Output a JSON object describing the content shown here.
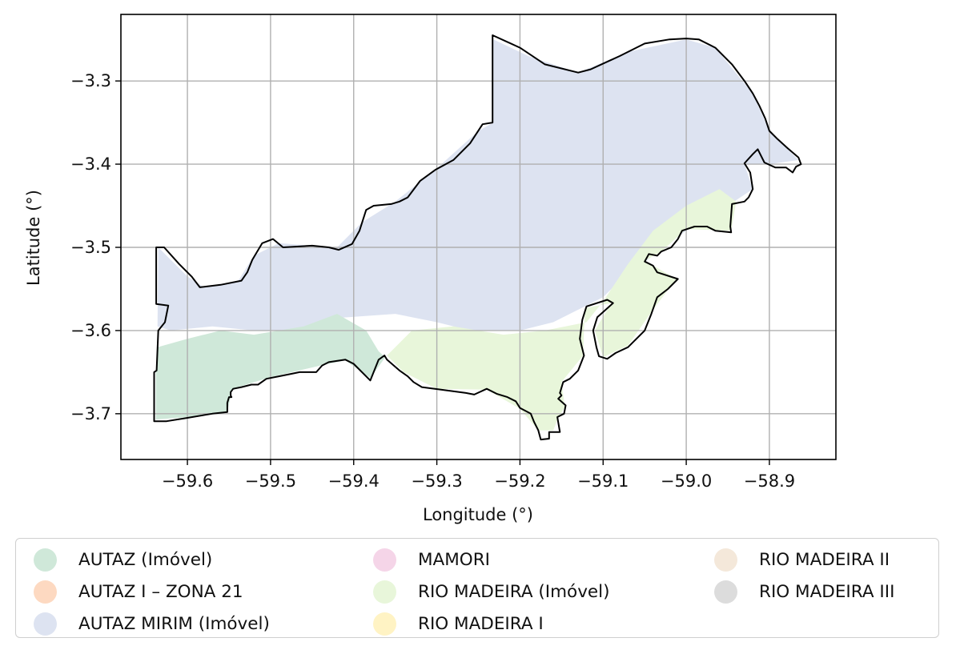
{
  "map": {
    "xlabel": "Longitude (°)",
    "ylabel": "Latitude (°)",
    "xlim": [
      -59.68,
      -58.82
    ],
    "ylim": [
      -3.755,
      -3.22
    ],
    "x_ticks": [
      -59.6,
      -59.5,
      -59.4,
      -59.3,
      -59.2,
      -59.1,
      -59.0,
      -58.9
    ],
    "x_tick_labels": [
      "−59.6",
      "−59.5",
      "−59.4",
      "−59.3",
      "−59.2",
      "−59.1",
      "−59.0",
      "−58.9"
    ],
    "y_ticks": [
      -3.3,
      -3.4,
      -3.5,
      -3.6,
      -3.7
    ],
    "y_tick_labels": [
      "−3.3",
      "−3.4",
      "−3.5",
      "−3.6",
      "−3.7"
    ],
    "grid": true,
    "boundary": [
      [
        -59.64,
        -3.709
      ],
      [
        -59.64,
        -3.65
      ],
      [
        -59.637,
        -3.648
      ],
      [
        -59.635,
        -3.6
      ],
      [
        -59.627,
        -3.59
      ],
      [
        -59.623,
        -3.57
      ],
      [
        -59.6375,
        -3.568
      ],
      [
        -59.6375,
        -3.5
      ],
      [
        -59.628,
        -3.5
      ],
      [
        -59.61,
        -3.52
      ],
      [
        -59.595,
        -3.535
      ],
      [
        -59.585,
        -3.548
      ],
      [
        -59.56,
        -3.545
      ],
      [
        -59.535,
        -3.54
      ],
      [
        -59.528,
        -3.53
      ],
      [
        -59.522,
        -3.515
      ],
      [
        -59.51,
        -3.495
      ],
      [
        -59.497,
        -3.49
      ],
      [
        -59.485,
        -3.5
      ],
      [
        -59.45,
        -3.498
      ],
      [
        -59.43,
        -3.5
      ],
      [
        -59.418,
        -3.503
      ],
      [
        -59.402,
        -3.496
      ],
      [
        -59.393,
        -3.48
      ],
      [
        -59.385,
        -3.455
      ],
      [
        -59.376,
        -3.45
      ],
      [
        -59.355,
        -3.448
      ],
      [
        -59.345,
        -3.445
      ],
      [
        -59.335,
        -3.44
      ],
      [
        -59.32,
        -3.42
      ],
      [
        -59.302,
        -3.407
      ],
      [
        -59.28,
        -3.395
      ],
      [
        -59.26,
        -3.375
      ],
      [
        -59.245,
        -3.352
      ],
      [
        -59.233,
        -3.35
      ],
      [
        -59.233,
        -3.245
      ],
      [
        -59.2,
        -3.26
      ],
      [
        -59.17,
        -3.28
      ],
      [
        -59.13,
        -3.29
      ],
      [
        -59.115,
        -3.286
      ],
      [
        -59.08,
        -3.27
      ],
      [
        -59.05,
        -3.255
      ],
      [
        -59.02,
        -3.25
      ],
      [
        -59.0,
        -3.249
      ],
      [
        -58.985,
        -3.25
      ],
      [
        -58.965,
        -3.26
      ],
      [
        -58.945,
        -3.28
      ],
      [
        -58.93,
        -3.3
      ],
      [
        -58.92,
        -3.315
      ],
      [
        -58.912,
        -3.33
      ],
      [
        -58.905,
        -3.345
      ],
      [
        -58.9,
        -3.36
      ],
      [
        -58.89,
        -3.37
      ],
      [
        -58.878,
        -3.381
      ],
      [
        -58.865,
        -3.392
      ],
      [
        -58.862,
        -3.4
      ],
      [
        -58.868,
        -3.403
      ],
      [
        -58.872,
        -3.41
      ],
      [
        -58.88,
        -3.404
      ],
      [
        -58.893,
        -3.404
      ],
      [
        -58.906,
        -3.398
      ],
      [
        -58.914,
        -3.382
      ],
      [
        -58.92,
        -3.388
      ],
      [
        -58.93,
        -3.399
      ],
      [
        -58.923,
        -3.41
      ],
      [
        -58.92,
        -3.43
      ],
      [
        -58.925,
        -3.44
      ],
      [
        -58.93,
        -3.445
      ],
      [
        -58.945,
        -3.448
      ],
      [
        -58.947,
        -3.475
      ],
      [
        -58.946,
        -3.482
      ],
      [
        -58.965,
        -3.48
      ],
      [
        -58.975,
        -3.475
      ],
      [
        -58.99,
        -3.475
      ],
      [
        -59.005,
        -3.48
      ],
      [
        -59.01,
        -3.49
      ],
      [
        -59.018,
        -3.5
      ],
      [
        -59.03,
        -3.505
      ],
      [
        -59.035,
        -3.51
      ],
      [
        -59.045,
        -3.508
      ],
      [
        -59.05,
        -3.517
      ],
      [
        -59.04,
        -3.522
      ],
      [
        -59.035,
        -3.53
      ],
      [
        -59.01,
        -3.538
      ],
      [
        -59.022,
        -3.55
      ],
      [
        -59.035,
        -3.56
      ],
      [
        -59.042,
        -3.58
      ],
      [
        -59.05,
        -3.6
      ],
      [
        -59.07,
        -3.62
      ],
      [
        -59.085,
        -3.627
      ],
      [
        -59.095,
        -3.634
      ],
      [
        -59.105,
        -3.631
      ],
      [
        -59.108,
        -3.62
      ],
      [
        -59.112,
        -3.6
      ],
      [
        -59.107,
        -3.584
      ],
      [
        -59.098,
        -3.576
      ],
      [
        -59.088,
        -3.567
      ],
      [
        -59.095,
        -3.563
      ],
      [
        -59.12,
        -3.571
      ],
      [
        -59.125,
        -3.587
      ],
      [
        -59.128,
        -3.61
      ],
      [
        -59.123,
        -3.63
      ],
      [
        -59.13,
        -3.648
      ],
      [
        -59.14,
        -3.658
      ],
      [
        -59.148,
        -3.662
      ],
      [
        -59.152,
        -3.675
      ],
      [
        -59.15,
        -3.678
      ],
      [
        -59.154,
        -3.682
      ],
      [
        -59.145,
        -3.69
      ],
      [
        -59.147,
        -3.7
      ],
      [
        -59.155,
        -3.704
      ],
      [
        -59.152,
        -3.722
      ],
      [
        -59.165,
        -3.722
      ],
      [
        -59.165,
        -3.73
      ],
      [
        -59.175,
        -3.731
      ],
      [
        -59.178,
        -3.72
      ],
      [
        -59.183,
        -3.71
      ],
      [
        -59.187,
        -3.7
      ],
      [
        -59.2,
        -3.693
      ],
      [
        -59.205,
        -3.685
      ],
      [
        -59.215,
        -3.68
      ],
      [
        -59.228,
        -3.676
      ],
      [
        -59.24,
        -3.67
      ],
      [
        -59.255,
        -3.677
      ],
      [
        -59.265,
        -3.675
      ],
      [
        -59.295,
        -3.671
      ],
      [
        -59.318,
        -3.668
      ],
      [
        -59.328,
        -3.662
      ],
      [
        -59.335,
        -3.655
      ],
      [
        -59.345,
        -3.648
      ],
      [
        -59.36,
        -3.635
      ],
      [
        -59.363,
        -3.63
      ],
      [
        -59.37,
        -3.635
      ],
      [
        -59.38,
        -3.66
      ],
      [
        -59.4,
        -3.64
      ],
      [
        -59.41,
        -3.635
      ],
      [
        -59.43,
        -3.638
      ],
      [
        -59.438,
        -3.642
      ],
      [
        -59.445,
        -3.65
      ],
      [
        -59.465,
        -3.65
      ],
      [
        -59.475,
        -3.652
      ],
      [
        -59.49,
        -3.655
      ],
      [
        -59.505,
        -3.658
      ],
      [
        -59.515,
        -3.665
      ],
      [
        -59.523,
        -3.665
      ],
      [
        -59.535,
        -3.668
      ],
      [
        -59.545,
        -3.67
      ],
      [
        -59.548,
        -3.674
      ],
      [
        -59.548,
        -3.678
      ],
      [
        -59.547,
        -3.68
      ],
      [
        -59.55,
        -3.68
      ],
      [
        -59.552,
        -3.687
      ],
      [
        -59.552,
        -3.698
      ],
      [
        -59.57,
        -3.7
      ],
      [
        -59.6,
        -3.705
      ],
      [
        -59.625,
        -3.709
      ],
      [
        -59.64,
        -3.709
      ]
    ],
    "regions": [
      {
        "name": "AUTAZ MIRIM (Imóvel)",
        "color": "#dde3f1",
        "polys": [
          [
            [
              -59.635,
              -3.5
            ],
            [
              -59.62,
              -3.515
            ],
            [
              -59.6,
              -3.535
            ],
            [
              -59.58,
              -3.548
            ],
            [
              -59.54,
              -3.542
            ],
            [
              -59.52,
              -3.51
            ],
            [
              -59.49,
              -3.495
            ],
            [
              -59.42,
              -3.5
            ],
            [
              -59.39,
              -3.47
            ],
            [
              -59.35,
              -3.445
            ],
            [
              -59.3,
              -3.405
            ],
            [
              -59.25,
              -3.36
            ],
            [
              -59.232,
              -3.35
            ],
            [
              -59.232,
              -3.25
            ],
            [
              -59.19,
              -3.27
            ],
            [
              -59.13,
              -3.29
            ],
            [
              -59.07,
              -3.265
            ],
            [
              -59.0,
              -3.25
            ],
            [
              -58.965,
              -3.26
            ],
            [
              -58.92,
              -3.315
            ],
            [
              -58.9,
              -3.36
            ],
            [
              -58.865,
              -3.395
            ],
            [
              -58.9,
              -3.4
            ],
            [
              -58.93,
              -3.4
            ],
            [
              -58.92,
              -3.43
            ],
            [
              -58.95,
              -3.45
            ],
            [
              -59.0,
              -3.48
            ],
            [
              -59.04,
              -3.51
            ],
            [
              -59.08,
              -3.54
            ],
            [
              -59.1,
              -3.56
            ],
            [
              -59.13,
              -3.575
            ],
            [
              -59.16,
              -3.59
            ],
            [
              -59.2,
              -3.6
            ],
            [
              -59.26,
              -3.6
            ],
            [
              -59.3,
              -3.59
            ],
            [
              -59.35,
              -3.58
            ],
            [
              -59.42,
              -3.585
            ],
            [
              -59.47,
              -3.6
            ],
            [
              -59.52,
              -3.6
            ],
            [
              -59.57,
              -3.595
            ],
            [
              -59.62,
              -3.6
            ],
            [
              -59.636,
              -3.595
            ]
          ]
        ]
      },
      {
        "name": "AUTAZ (Imóvel)",
        "color": "#cfe8d9",
        "polys": [
          [
            [
              -59.636,
              -3.62
            ],
            [
              -59.6,
              -3.61
            ],
            [
              -59.56,
              -3.6
            ],
            [
              -59.52,
              -3.605
            ],
            [
              -59.46,
              -3.595
            ],
            [
              -59.42,
              -3.58
            ],
            [
              -59.385,
              -3.6
            ],
            [
              -59.37,
              -3.625
            ],
            [
              -59.362,
              -3.632
            ],
            [
              -59.38,
              -3.657
            ],
            [
              -59.41,
              -3.636
            ],
            [
              -59.44,
              -3.642
            ],
            [
              -59.5,
              -3.656
            ],
            [
              -59.546,
              -3.67
            ],
            [
              -59.552,
              -3.698
            ],
            [
              -59.6,
              -3.704
            ],
            [
              -59.638,
              -3.707
            ],
            [
              -59.638,
              -3.65
            ]
          ]
        ]
      },
      {
        "name": "RIO MADEIRA (Imóvel)",
        "color": "#e8f6da",
        "polys": [
          [
            [
              -59.36,
              -3.63
            ],
            [
              -59.33,
              -3.6
            ],
            [
              -59.28,
              -3.595
            ],
            [
              -59.22,
              -3.605
            ],
            [
              -59.17,
              -3.6
            ],
            [
              -59.12,
              -3.59
            ],
            [
              -59.1,
              -3.565
            ],
            [
              -59.07,
              -3.52
            ],
            [
              -59.04,
              -3.48
            ],
            [
              -59.0,
              -3.45
            ],
            [
              -58.96,
              -3.43
            ],
            [
              -58.94,
              -3.445
            ],
            [
              -58.946,
              -3.48
            ],
            [
              -59.0,
              -3.478
            ],
            [
              -59.03,
              -3.505
            ],
            [
              -59.05,
              -3.516
            ],
            [
              -59.012,
              -3.538
            ],
            [
              -59.04,
              -3.575
            ],
            [
              -59.07,
              -3.618
            ],
            [
              -59.1,
              -3.632
            ],
            [
              -59.11,
              -3.6
            ],
            [
              -59.09,
              -3.567
            ],
            [
              -59.122,
              -3.573
            ],
            [
              -59.124,
              -3.63
            ],
            [
              -59.15,
              -3.662
            ],
            [
              -59.146,
              -3.692
            ],
            [
              -59.154,
              -3.705
            ],
            [
              -59.16,
              -3.72
            ],
            [
              -59.178,
              -3.72
            ],
            [
              -59.2,
              -3.694
            ],
            [
              -59.24,
              -3.671
            ],
            [
              -59.3,
              -3.67
            ],
            [
              -59.34,
              -3.65
            ]
          ]
        ]
      }
    ]
  },
  "legend": {
    "columns": [
      [
        {
          "label": "AUTAZ (Imóvel)",
          "color": "#cfe8d9"
        },
        {
          "label": "AUTAZ I – ZONA 21",
          "color": "#fdd9c1"
        },
        {
          "label": "AUTAZ MIRIM (Imóvel)",
          "color": "#dde3f1"
        }
      ],
      [
        {
          "label": "MAMORI",
          "color": "#f5d5e8"
        },
        {
          "label": "RIO MADEIRA (Imóvel)",
          "color": "#e8f6da"
        },
        {
          "label": "RIO MADEIRA I",
          "color": "#fff3c4"
        }
      ],
      [
        {
          "label": "RIO MADEIRA II",
          "color": "#f4e8da"
        },
        {
          "label": "RIO MADEIRA III",
          "color": "#dcdcdc"
        }
      ]
    ]
  }
}
